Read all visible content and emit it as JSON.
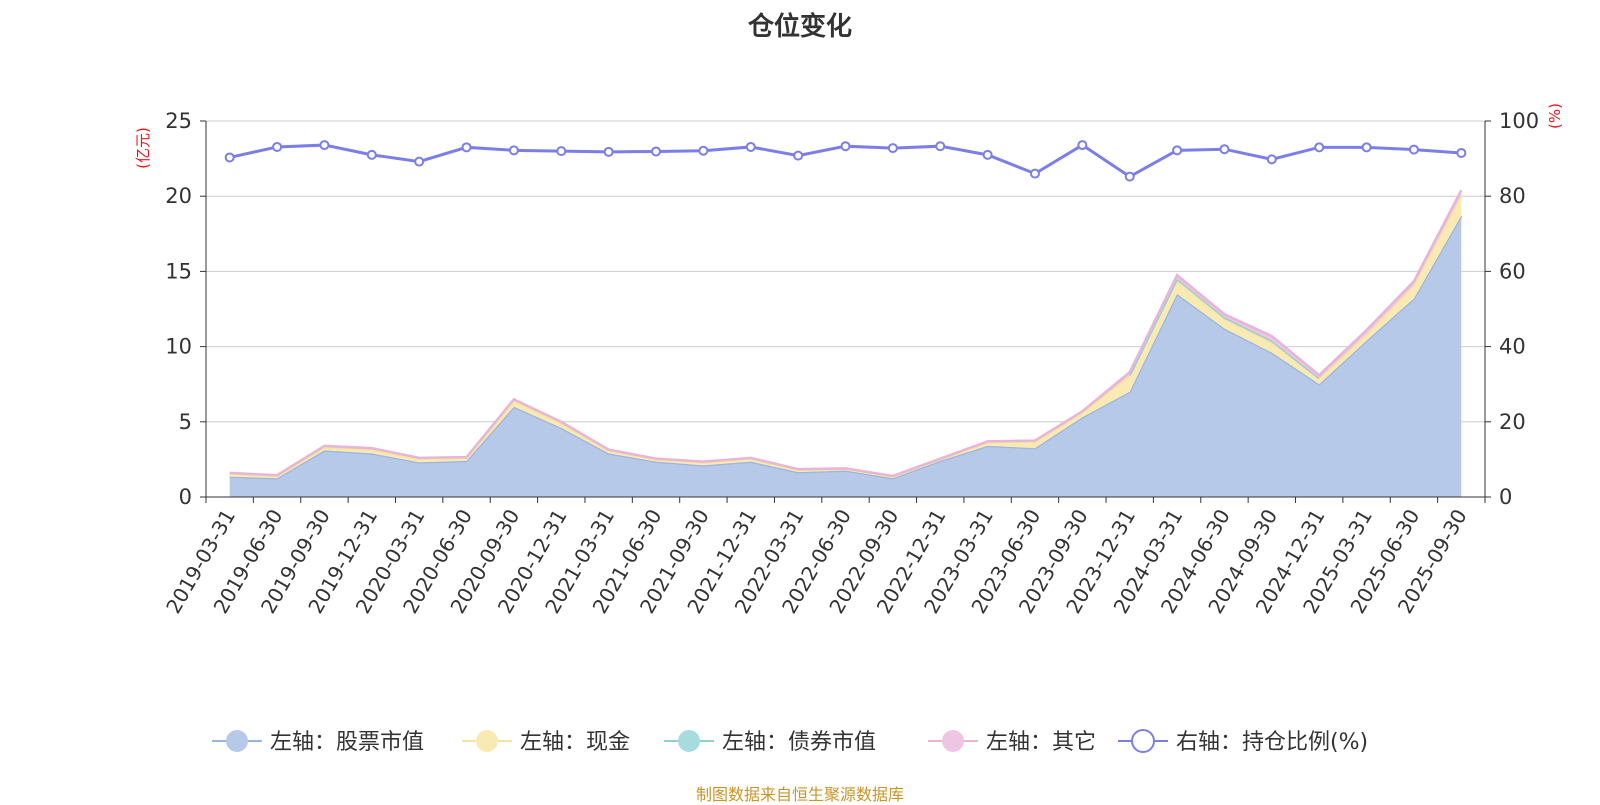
{
  "title": "仓位变化",
  "footer": "制图数据来自恒生聚源数据库",
  "left_axis_unit": "(亿元)",
  "right_axis_unit": "(%)",
  "chart_data": {
    "type": "area",
    "categories": [
      "2019-03-31",
      "2019-06-30",
      "2019-09-30",
      "2019-12-31",
      "2020-03-31",
      "2020-06-30",
      "2020-09-30",
      "2020-12-31",
      "2021-03-31",
      "2021-06-30",
      "2021-09-30",
      "2021-12-31",
      "2022-03-31",
      "2022-06-30",
      "2022-09-30",
      "2022-12-31",
      "2023-03-31",
      "2023-06-30",
      "2023-09-30",
      "2023-12-31",
      "2024-03-31",
      "2024-06-30",
      "2024-09-30",
      "2024-12-31",
      "2025-03-31",
      "2025-06-30",
      "2025-09-30"
    ],
    "ylim_left": [
      0,
      25
    ],
    "ylim_right": [
      0,
      100
    ],
    "left_ticks": [
      0,
      5,
      10,
      15,
      20,
      25
    ],
    "right_ticks": [
      0,
      20,
      40,
      60,
      80,
      100
    ],
    "grid": true,
    "legend_position": "bottom",
    "series": [
      {
        "name": "左轴：股票市值",
        "axis": "left",
        "stacked": true,
        "color": "#9ab5e0",
        "fill": "#b6c9e8",
        "values": [
          1.35,
          1.25,
          3.1,
          2.9,
          2.3,
          2.4,
          6.0,
          4.6,
          2.9,
          2.35,
          2.1,
          2.35,
          1.65,
          1.75,
          1.25,
          2.4,
          3.4,
          3.25,
          5.3,
          7.0,
          13.5,
          11.2,
          9.6,
          7.5,
          10.4,
          13.2,
          18.7
        ]
      },
      {
        "name": "左轴：现金",
        "axis": "left",
        "stacked": true,
        "color": "#f7e39b",
        "fill": "#f9eab4",
        "values": [
          0.2,
          0.15,
          0.2,
          0.25,
          0.25,
          0.2,
          0.4,
          0.3,
          0.2,
          0.15,
          0.2,
          0.2,
          0.15,
          0.1,
          0.1,
          0.1,
          0.25,
          0.45,
          0.3,
          1.1,
          0.95,
          0.65,
          0.7,
          0.4,
          0.45,
          0.9,
          1.4
        ]
      },
      {
        "name": "左轴：债券市值",
        "axis": "left",
        "stacked": true,
        "color": "#8fd1d3",
        "fill": "#a6dcdd",
        "values": [
          0,
          0,
          0,
          0,
          0,
          0,
          0,
          0,
          0,
          0,
          0,
          0,
          0,
          0,
          0,
          0,
          0,
          0,
          0,
          0,
          0.05,
          0.1,
          0.1,
          0,
          0,
          0,
          0
        ]
      },
      {
        "name": "左轴：其它",
        "axis": "left",
        "stacked": true,
        "color": "#e7b5d8",
        "fill": "#eec5e2",
        "values": [
          0.05,
          0.05,
          0.1,
          0.1,
          0.05,
          0.05,
          0.1,
          0.1,
          0.05,
          0.05,
          0.05,
          0.05,
          0.05,
          0.05,
          0.05,
          0.05,
          0.05,
          0.05,
          0.1,
          0.2,
          0.25,
          0.2,
          0.3,
          0.2,
          0.25,
          0.25,
          0.3
        ]
      },
      {
        "name": "右轴：持仓比例(%)",
        "axis": "right",
        "type": "line",
        "color": "#7b7ee9",
        "values": [
          90.3,
          93.1,
          93.6,
          91.0,
          89.2,
          93.0,
          92.2,
          92.0,
          91.8,
          91.9,
          92.1,
          93.1,
          90.8,
          93.3,
          92.8,
          93.3,
          91.0,
          86.0,
          93.6,
          85.2,
          92.2,
          92.5,
          89.8,
          93.0,
          93.0,
          92.4,
          91.5
        ]
      }
    ]
  }
}
